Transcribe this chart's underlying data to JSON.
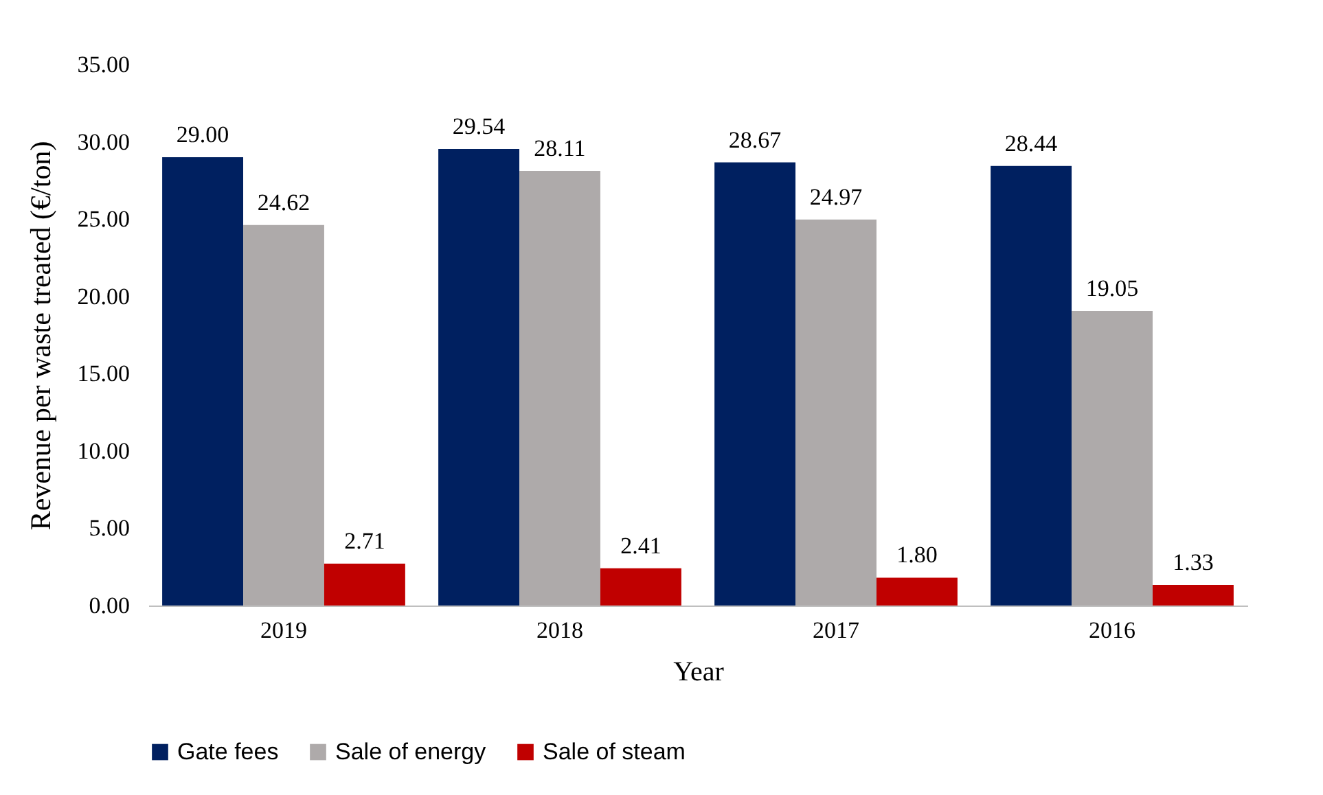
{
  "chart_data": {
    "type": "bar",
    "xlabel": "Year",
    "ylabel": "Revenue per waste treated (€/ton)",
    "categories": [
      "2019",
      "2018",
      "2017",
      "2016"
    ],
    "series": [
      {
        "name": "Gate fees",
        "color": "#002060",
        "values": [
          29.0,
          29.54,
          28.67,
          28.44
        ],
        "value_labels": [
          "29.00",
          "29.54",
          "28.67",
          "28.44"
        ]
      },
      {
        "name": "Sale of energy",
        "color": "#aeaaaa",
        "values": [
          24.62,
          28.11,
          24.97,
          19.05
        ],
        "value_labels": [
          "24.62",
          "28.11",
          "24.97",
          "19.05"
        ]
      },
      {
        "name": "Sale of steam",
        "color": "#c00000",
        "values": [
          2.71,
          2.41,
          1.8,
          1.33
        ],
        "value_labels": [
          "2.71",
          "2.41",
          "1.80",
          "1.33"
        ]
      }
    ],
    "ylim": [
      0,
      35
    ],
    "yticks": [
      {
        "value": 0,
        "label": "0.00"
      },
      {
        "value": 5,
        "label": "5.00"
      },
      {
        "value": 10,
        "label": "10.00"
      },
      {
        "value": 15,
        "label": "15.00"
      },
      {
        "value": 20,
        "label": "20.00"
      },
      {
        "value": 25,
        "label": "25.00"
      },
      {
        "value": 30,
        "label": "30.00"
      },
      {
        "value": 35,
        "label": "35.00"
      }
    ],
    "grid": false,
    "legend": "bottom"
  }
}
